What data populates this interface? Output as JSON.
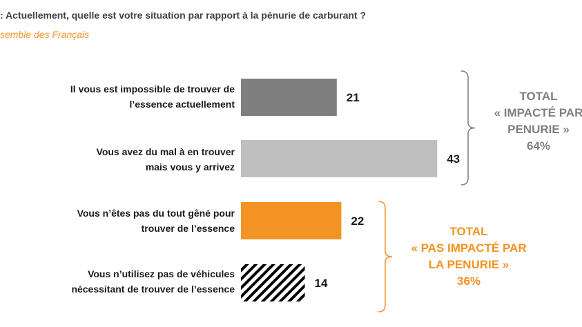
{
  "header": {
    "question": ": Actuellement, quelle est votre situation par rapport à la pénurie de carburant ?",
    "population": "semble des Français"
  },
  "colors": {
    "impossible": "#7f7f7f",
    "difficile": "#bfbfbf",
    "pas_gene": "#F39323",
    "hatch": "#000000",
    "total_impacted": "#7f7f7f",
    "total_not_impacted": "#F39323"
  },
  "chart_data": {
    "type": "bar",
    "orientation": "horizontal",
    "categories": [
      "Il vous est impossible de trouver de l’essence actuellement",
      "Vous avez du mal à en trouver mais vous y arrivez",
      "Vous n’êtes pas du tout gêné pour trouver de l’essence",
      "Vous n’utilisez pas de véhicules nécessitant de trouver de l’essence"
    ],
    "category_lines": [
      [
        "Il vous est impossible de trouver de",
        "l’essence actuellement"
      ],
      [
        "Vous avez du mal à en trouver",
        "mais vous y arrivez"
      ],
      [
        "Vous n’êtes pas du tout gêné pour",
        "trouver de l’essence"
      ],
      [
        "Vous n’utilisez pas de véhicules",
        "nécessitant de trouver de l’essence"
      ]
    ],
    "values": [
      21,
      43,
      22,
      14
    ],
    "value_labels": [
      "21",
      "43",
      "22",
      "14"
    ],
    "bar_styles": [
      "solid-dark-gray",
      "solid-light-gray",
      "solid-orange",
      "hatched-black"
    ],
    "groups": [
      {
        "lines": [
          "TOTAL",
          "« IMPACTÉ PAR",
          "PENURIE »",
          "64%"
        ],
        "value": 64,
        "members": [
          0,
          1
        ]
      },
      {
        "lines": [
          "TOTAL",
          "« PAS IMPACTÉ PAR",
          "LA PENURIE »",
          "36%"
        ],
        "value": 36,
        "members": [
          2,
          3
        ]
      }
    ]
  }
}
